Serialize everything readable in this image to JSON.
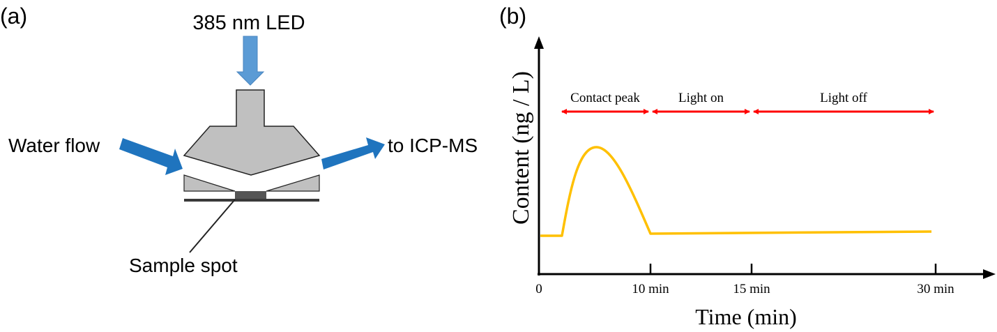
{
  "panel_a": {
    "label": "(a)",
    "led_label": "385 nm LED",
    "inlet_label": "Water flow",
    "outlet_label": "to ICP-MS",
    "sample_label": "Sample spot",
    "colors": {
      "led_arrow": "#5b9bd5",
      "flow_arrow": "#1f74be",
      "cell": "#c0c0c0",
      "spot": "#555555"
    }
  },
  "panel_b": {
    "label": "(b)",
    "chart_data": {
      "type": "line",
      "title": "",
      "xlabel": "Time (min)",
      "ylabel": "Content (ng / L)",
      "x_ticks": [
        "0",
        "10 min",
        "15 min",
        "30 min"
      ],
      "phases": [
        {
          "name": "Contact peak",
          "start_min": 2,
          "end_min": 10
        },
        {
          "name": "Light on",
          "start_min": 10,
          "end_min": 15
        },
        {
          "name": "Light off",
          "start_min": 15,
          "end_min": 30
        }
      ],
      "series": [
        {
          "name": "Content",
          "color": "#ffc000",
          "description_points": [
            [
              0,
              "baseline"
            ],
            [
              2,
              "baseline"
            ],
            [
              5,
              "peak"
            ],
            [
              10,
              "baseline"
            ],
            [
              30,
              "baseline"
            ]
          ]
        }
      ],
      "grid": false
    }
  }
}
